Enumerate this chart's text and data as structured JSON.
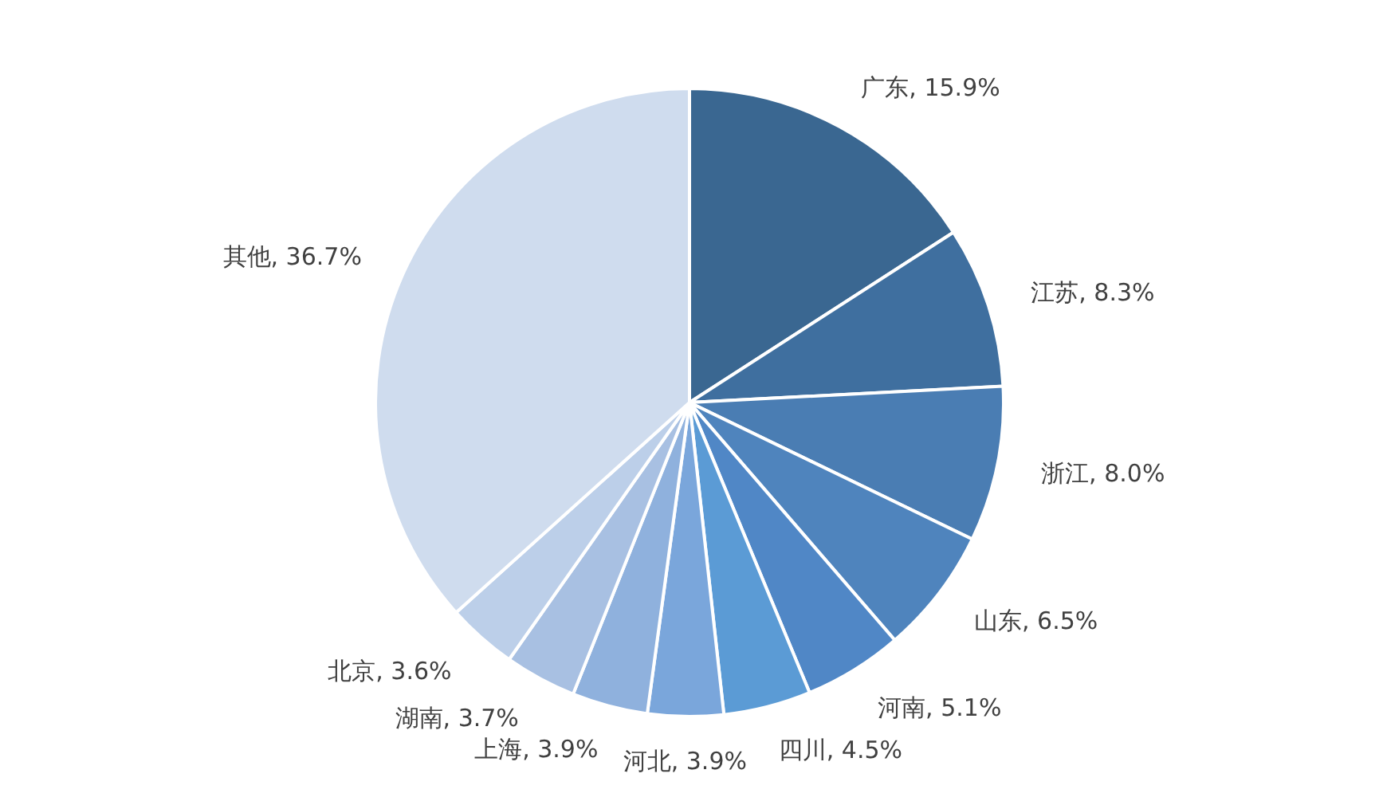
{
  "chart_data": {
    "type": "pie",
    "categories": [
      "广东",
      "江苏",
      "浙江",
      "山东",
      "河南",
      "四川",
      "河北",
      "上海",
      "湖南",
      "北京",
      "其他"
    ],
    "values": [
      15.9,
      8.3,
      8.0,
      6.5,
      5.1,
      4.5,
      3.9,
      3.9,
      3.7,
      3.6,
      36.7
    ],
    "value_labels": [
      "15.9%",
      "8.3%",
      "8.0%",
      "6.5%",
      "5.1%",
      "4.5%",
      "3.9%",
      "3.9%",
      "3.7%",
      "3.6%",
      "36.7%"
    ],
    "colors": [
      "#3a6791",
      "#3f6f9f",
      "#4a7db3",
      "#4f84bd",
      "#5087c6",
      "#5b9bd5",
      "#7aa6db",
      "#8fb1dd",
      "#a8c0e2",
      "#bccfe9",
      "#cfdcee"
    ]
  }
}
